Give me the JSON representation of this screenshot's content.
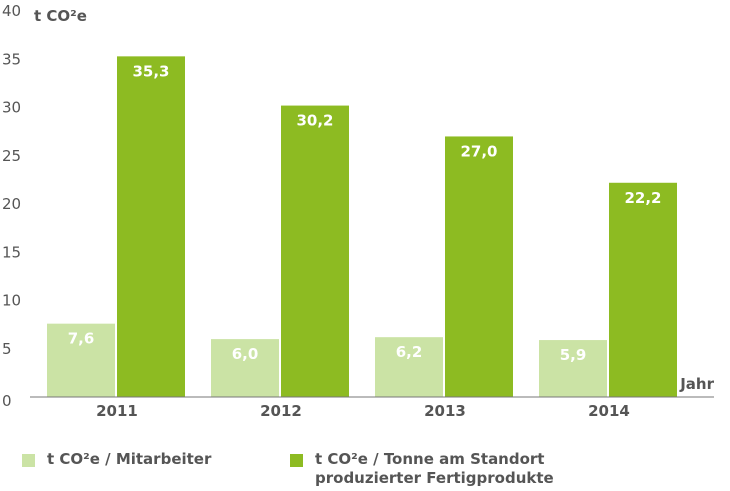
{
  "chart_data": {
    "type": "bar",
    "ylabel": "t CO²e",
    "xlabel": "Jahr",
    "ylim": [
      0,
      40
    ],
    "yticks": [
      "0",
      "5",
      "10",
      "15",
      "20",
      "25",
      "30",
      "35",
      "40"
    ],
    "categories": [
      "2011",
      "2012",
      "2013",
      "2014"
    ],
    "series": [
      {
        "name": "t CO²e / Mitarbeiter",
        "color": "#cbe3a5",
        "values": [
          7.6,
          6.0,
          6.2,
          5.9
        ],
        "labels": [
          "7,6",
          "6,0",
          "6,2",
          "5,9"
        ]
      },
      {
        "name_lines": [
          "t CO²e / Tonne am Standort",
          "produzierter Fertigprodukte"
        ],
        "color": "#8dbb22",
        "values": [
          35.3,
          30.2,
          27.0,
          22.2
        ],
        "labels": [
          "35,3",
          "30,2",
          "27,0",
          "22,2"
        ]
      }
    ],
    "grid": false,
    "legend_position": "bottom"
  }
}
